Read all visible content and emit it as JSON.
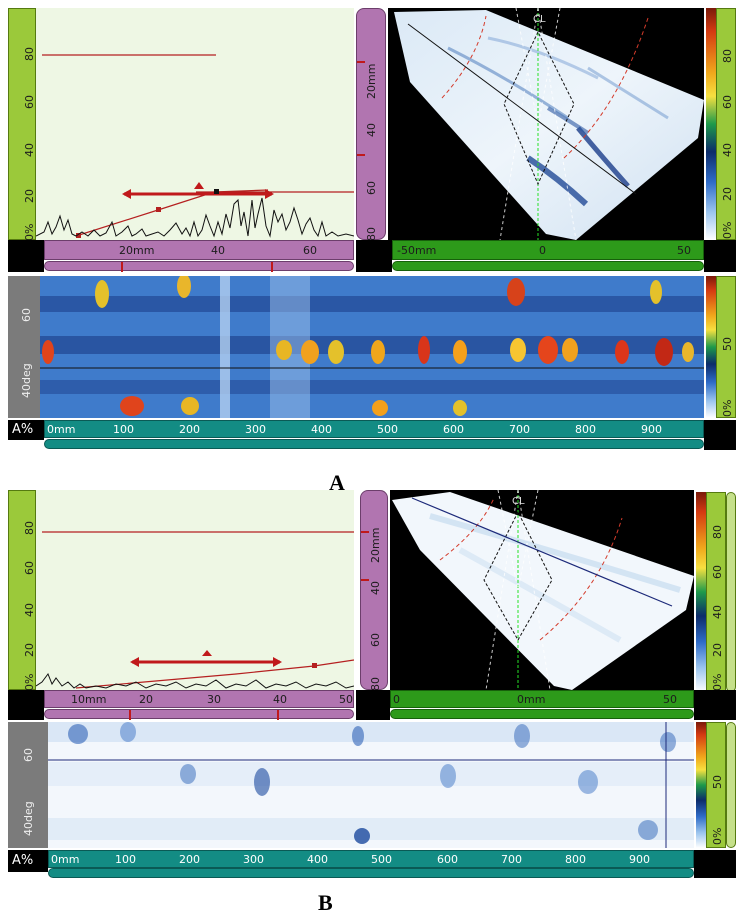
{
  "captions": {
    "top": "A",
    "bottom": "B"
  },
  "panelA": {
    "ascan_amp_ticks": [
      "80",
      "60",
      "40",
      "20",
      "0%"
    ],
    "depth_ticks": [
      "20mm",
      "40",
      "60",
      "80"
    ],
    "ascan_x_ticks": [
      "20mm",
      "40",
      "60"
    ],
    "sscan_x_ticks": [
      "-50mm",
      "0",
      "50"
    ],
    "sscan_label": "CL",
    "colorbar_ticks": [
      "80",
      "60",
      "40",
      "20",
      "0%"
    ],
    "cscan_left_ticks": [
      "60",
      "40deg"
    ],
    "cscan_colorbar_ticks": [
      "50",
      "0%"
    ],
    "mode_label": "A%",
    "cscan_x_ticks": [
      "0mm",
      "100",
      "200",
      "300",
      "400",
      "500",
      "600",
      "700",
      "800",
      "900"
    ]
  },
  "panelB": {
    "ascan_amp_ticks": [
      "80",
      "60",
      "40",
      "20",
      "0%"
    ],
    "depth_ticks": [
      "20mm",
      "40",
      "60",
      "80"
    ],
    "ascan_x_ticks": [
      "10mm",
      "20",
      "30",
      "40",
      "50"
    ],
    "sscan_x_ticks": [
      "0",
      "0mm",
      "50"
    ],
    "sscan_label": "CL",
    "colorbar_ticks": [
      "80",
      "60",
      "40",
      "20",
      "0%"
    ],
    "cscan_left_ticks": [
      "60",
      "40deg"
    ],
    "cscan_colorbar_ticks": [
      "50",
      "0%"
    ],
    "mode_label": "A%",
    "cscan_x_ticks": [
      "0mm",
      "100",
      "200",
      "300",
      "400",
      "500",
      "600",
      "700",
      "800",
      "900"
    ]
  },
  "colors": {
    "green_ruler": "#9bc93a",
    "purple_ruler": "#b175b0",
    "teal_ruler": "#138c84",
    "dark_green_ruler": "#2d9a1a",
    "ascan_bg": "#eef7e4",
    "gate_red": "#c0191b"
  }
}
